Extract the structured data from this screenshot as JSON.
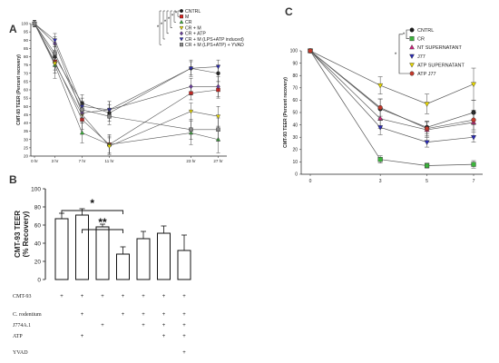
{
  "chart_data": [
    {
      "panel": "A",
      "type": "line",
      "ylabel": "CMT-93 TEER (Percent recovery)",
      "x_ticks": [
        "0 hr",
        "3 hr",
        "7 hr",
        "11 hr",
        "23 hr",
        "27 hr"
      ],
      "x": [
        0,
        3,
        7,
        11,
        23,
        27
      ],
      "ylim": [
        20,
        100
      ],
      "y_ticks": [
        20,
        25,
        30,
        35,
        40,
        45,
        50,
        55,
        60,
        65,
        70,
        75,
        80,
        85,
        90,
        95,
        100
      ],
      "significance": [
        "*",
        "*",
        "*",
        "*",
        "*",
        "*"
      ],
      "series": [
        {
          "name": "CNTRL",
          "color": "#1a1a1a",
          "marker": "circle",
          "values": [
            100,
            80,
            52,
            46,
            73,
            70
          ],
          "err": [
            2,
            6,
            5,
            5,
            5,
            5
          ]
        },
        {
          "name": "M",
          "color": "#e0201b",
          "marker": "square",
          "values": [
            100,
            77,
            42,
            27,
            58,
            60
          ],
          "err": [
            2,
            5,
            6,
            5,
            4,
            5
          ]
        },
        {
          "name": "CR",
          "color": "#3cb43c",
          "marker": "triangle-up",
          "values": [
            100,
            75,
            34,
            27,
            34,
            30
          ],
          "err": [
            2,
            8,
            6,
            6,
            7,
            8
          ]
        },
        {
          "name": "CR + M",
          "color": "#e8d800",
          "marker": "triangle-down",
          "values": [
            100,
            76,
            45,
            26,
            47,
            44
          ],
          "err": [
            2,
            6,
            5,
            5,
            5,
            6
          ]
        },
        {
          "name": "CR + ATP",
          "color": "#6a3d9a",
          "marker": "diamond",
          "values": [
            100,
            88,
            46,
            48,
            62,
            62
          ],
          "err": [
            2,
            4,
            5,
            5,
            5,
            6
          ]
        },
        {
          "name": "CR + M (LPS+ATP induced)",
          "color": "#2b2bb5",
          "marker": "triangle-down",
          "values": [
            100,
            90,
            50,
            48,
            73,
            74
          ],
          "err": [
            2,
            4,
            5,
            5,
            4,
            4
          ]
        },
        {
          "name": "CR + M (LPS+ATP) + YVAD",
          "color": "#888888",
          "marker": "square",
          "values": [
            100,
            82,
            48,
            44,
            36,
            36
          ],
          "err": [
            2,
            5,
            5,
            5,
            6,
            7
          ]
        }
      ]
    },
    {
      "panel": "B",
      "type": "bar",
      "ylabel": "CMT-93 TEER (% Recovery)",
      "ylim": [
        0,
        100
      ],
      "y_ticks": [
        0,
        20,
        40,
        60,
        80,
        100
      ],
      "values": [
        67,
        71,
        58,
        28,
        45,
        51,
        32
      ],
      "err": [
        6,
        7,
        3,
        8,
        8,
        8,
        17
      ],
      "significance": [
        {
          "from": 1,
          "to": 4,
          "label": "*"
        },
        {
          "from": 2,
          "to": 4,
          "label": "**"
        }
      ],
      "rows": [
        {
          "label": "CMT-93",
          "marks": [
            "+",
            "+",
            "+",
            "+",
            "+",
            "+",
            "+"
          ]
        },
        {
          "label": "C. rodentium",
          "marks": [
            "",
            "+",
            "",
            "+",
            "+",
            "+",
            "+"
          ]
        },
        {
          "label": "J774A.1",
          "marks": [
            "",
            "",
            "+",
            "",
            "+",
            "+",
            "+"
          ]
        },
        {
          "label": "ATP",
          "marks": [
            "",
            "+",
            "",
            "",
            "",
            "+",
            "+"
          ]
        },
        {
          "label": "YVAD",
          "marks": [
            "",
            "",
            "",
            "",
            "",
            "",
            "+"
          ]
        }
      ]
    },
    {
      "panel": "C",
      "type": "line",
      "ylabel": "CMT-93 TEER (Percent recovery)",
      "x": [
        0,
        3,
        5,
        7
      ],
      "x_ticks": [
        "0",
        "3",
        "5",
        "7"
      ],
      "ylim": [
        0,
        100
      ],
      "y_ticks": [
        0,
        10,
        20,
        30,
        40,
        50,
        60,
        70,
        80,
        90,
        100
      ],
      "significance": [
        "*",
        "*"
      ],
      "series": [
        {
          "name": "CNTRL",
          "color": "#1a1a1a",
          "marker": "circle",
          "values": [
            100,
            53,
            38,
            50
          ],
          "err": [
            1,
            8,
            5,
            10
          ]
        },
        {
          "name": "CR",
          "color": "#3cb43c",
          "marker": "square",
          "values": [
            100,
            12,
            7,
            8
          ],
          "err": [
            1,
            3,
            2,
            3
          ]
        },
        {
          "name": "NT SUPERNATANT",
          "color": "#d0237d",
          "marker": "triangle-up",
          "values": [
            100,
            45,
            36,
            42
          ],
          "err": [
            1,
            8,
            6,
            8
          ]
        },
        {
          "name": "J77",
          "color": "#2b2bb5",
          "marker": "triangle-down",
          "values": [
            100,
            38,
            26,
            30
          ],
          "err": [
            1,
            6,
            4,
            4
          ]
        },
        {
          "name": "ATP SUPERNATANT",
          "color": "#e8d800",
          "marker": "triangle-down",
          "values": [
            100,
            72,
            57,
            73
          ],
          "err": [
            1,
            7,
            8,
            13
          ]
        },
        {
          "name": "ATP J77",
          "color": "#c0392b",
          "marker": "circle",
          "values": [
            100,
            54,
            37,
            44
          ],
          "err": [
            1,
            7,
            6,
            8
          ]
        }
      ]
    }
  ],
  "panels": {
    "a": "A",
    "b": "B",
    "c": "C"
  }
}
